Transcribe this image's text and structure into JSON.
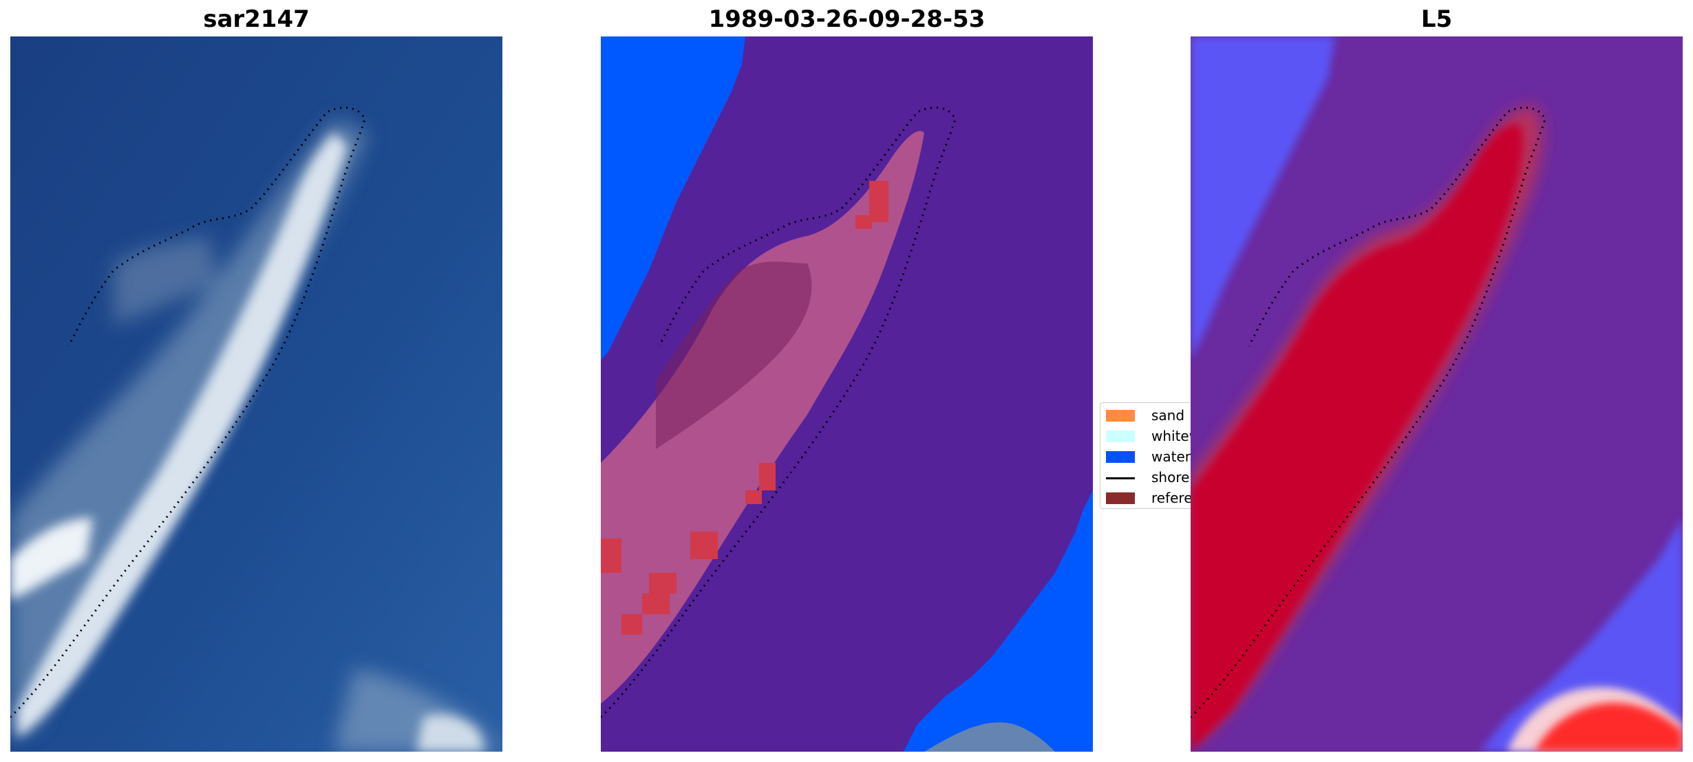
{
  "panels": [
    {
      "title": "sar2147"
    },
    {
      "title": "1989-03-26-09-28-53"
    },
    {
      "title": "L5"
    }
  ],
  "legend": {
    "items": [
      {
        "label": "sand",
        "color": "#ff8c3a",
        "kind": "patch"
      },
      {
        "label": "whitew",
        "color": "#ccffff",
        "kind": "patch"
      },
      {
        "label": "water",
        "color": "#0052ff",
        "kind": "patch"
      },
      {
        "label": "shorel",
        "color": "#000000",
        "kind": "line"
      },
      {
        "label": "referer",
        "color": "#8b2a2a",
        "kind": "patch"
      }
    ]
  },
  "colors": {
    "sea_rgb": "#1d4a8f",
    "water_class": "#0059ff",
    "land_class": "#55229a",
    "reference_overlay": "#c43b5c",
    "heat_high": "#c7052f",
    "heat_low": "#5a5aff",
    "heat_mid": "#6a2aa0"
  }
}
